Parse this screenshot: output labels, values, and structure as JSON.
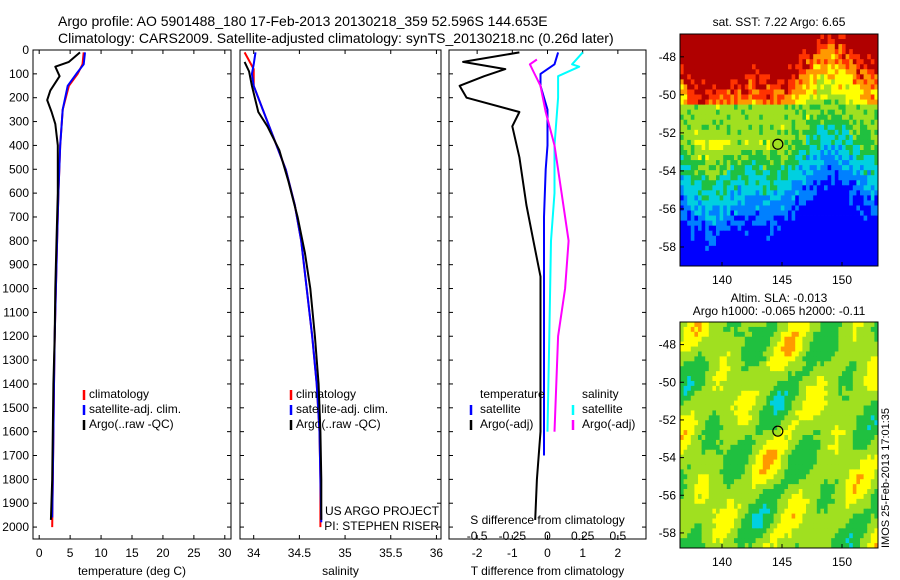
{
  "header": {
    "line1": "Argo profile: AO 5901488_180 17-Feb-2013 20130218_359 52.596S 144.653E",
    "line2": "Climatology: CARS2009. Satellite-adjusted climatology: synTS_20130218.nc (0.26d later)"
  },
  "colors": {
    "climatology": "#ff0000",
    "satellite": "#0000ff",
    "argo": "#000000",
    "sat_salinity": "#00ffff",
    "argo_salinity": "#ff00ff"
  },
  "chart_data": [
    {
      "type": "line",
      "id": "temperature-profile",
      "xlabel": "temperature (deg C)",
      "ylim": [
        2050,
        0
      ],
      "xlim": [
        -1,
        31
      ],
      "xticks": [
        0,
        5,
        10,
        15,
        20,
        25,
        30
      ],
      "yticks": [
        0,
        100,
        200,
        300,
        400,
        500,
        600,
        700,
        800,
        900,
        1000,
        1100,
        1200,
        1300,
        1400,
        1500,
        1600,
        1700,
        1800,
        1900,
        2000
      ],
      "legend": [
        "climatology",
        "satellite-adj. clim.",
        "Argo(..raw -QC)"
      ],
      "series": [
        {
          "name": "climatology",
          "color": "#ff0000",
          "points": [
            [
              7.2,
              10
            ],
            [
              7.0,
              60
            ],
            [
              6.2,
              100
            ],
            [
              4.8,
              150
            ],
            [
              3.8,
              250
            ],
            [
              3.4,
              400
            ],
            [
              3.1,
              600
            ],
            [
              2.9,
              800
            ],
            [
              2.7,
              1000
            ],
            [
              2.5,
              1200
            ],
            [
              2.4,
              1400
            ],
            [
              2.3,
              1600
            ],
            [
              2.2,
              1800
            ],
            [
              2.1,
              2000
            ]
          ]
        },
        {
          "name": "satellite-adj. clim.",
          "color": "#0000ff",
          "points": [
            [
              7.4,
              10
            ],
            [
              7.2,
              60
            ],
            [
              6.0,
              100
            ],
            [
              4.6,
              150
            ],
            [
              3.8,
              250
            ],
            [
              3.4,
              400
            ],
            [
              3.1,
              600
            ],
            [
              2.9,
              800
            ],
            [
              2.7,
              1000
            ],
            [
              2.5,
              1200
            ],
            [
              2.4,
              1400
            ],
            [
              2.3,
              1600
            ],
            [
              2.2,
              1800
            ],
            [
              2.1,
              1960
            ]
          ]
        },
        {
          "name": "Argo(..raw -QC)",
          "color": "#000000",
          "points": [
            [
              6.6,
              10
            ],
            [
              4.8,
              50
            ],
            [
              2.6,
              70
            ],
            [
              3.3,
              110
            ],
            [
              1.8,
              170
            ],
            [
              1.3,
              210
            ],
            [
              2.0,
              260
            ],
            [
              2.6,
              310
            ],
            [
              3.0,
              400
            ],
            [
              3.0,
              600
            ],
            [
              2.8,
              800
            ],
            [
              2.6,
              1000
            ],
            [
              2.5,
              1200
            ],
            [
              2.3,
              1400
            ],
            [
              2.2,
              1600
            ],
            [
              2.1,
              1800
            ],
            [
              1.9,
              1970
            ]
          ]
        }
      ]
    },
    {
      "type": "line",
      "id": "salinity-profile",
      "xlabel": "salinity",
      "ylim": [
        2050,
        0
      ],
      "xlim": [
        33.85,
        36.05
      ],
      "xticks": [
        34,
        34.5,
        35,
        35.5,
        36
      ],
      "xticklabels": [
        "34",
        "34.5",
        "35",
        "35.5",
        "36"
      ],
      "legend": [
        "climatology",
        "satellite-adj. clim.",
        "Argo(..raw -QC)"
      ],
      "series": [
        {
          "name": "climatology",
          "color": "#ff0000",
          "points": [
            [
              33.9,
              10
            ],
            [
              34.0,
              80
            ],
            [
              34.0,
              150
            ],
            [
              34.1,
              250
            ],
            [
              34.2,
              350
            ],
            [
              34.35,
              500
            ],
            [
              34.45,
              650
            ],
            [
              34.52,
              800
            ],
            [
              34.58,
              1000
            ],
            [
              34.64,
              1200
            ],
            [
              34.69,
              1400
            ],
            [
              34.72,
              1600
            ],
            [
              34.73,
              1800
            ],
            [
              34.73,
              2000
            ]
          ]
        },
        {
          "name": "satellite-adj. clim.",
          "color": "#0000ff",
          "points": [
            [
              34.02,
              10
            ],
            [
              34.0,
              60
            ],
            [
              33.98,
              100
            ],
            [
              34.0,
              150
            ],
            [
              34.1,
              250
            ],
            [
              34.2,
              350
            ],
            [
              34.35,
              500
            ],
            [
              34.45,
              650
            ],
            [
              34.52,
              800
            ],
            [
              34.58,
              1000
            ],
            [
              34.64,
              1200
            ],
            [
              34.69,
              1400
            ],
            [
              34.72,
              1600
            ],
            [
              34.73,
              1800
            ],
            [
              34.74,
              1980
            ]
          ]
        },
        {
          "name": "Argo(..raw -QC)",
          "color": "#000000",
          "points": [
            [
              33.9,
              50
            ],
            [
              33.95,
              90
            ],
            [
              33.98,
              150
            ],
            [
              34.05,
              260
            ],
            [
              34.15,
              320
            ],
            [
              34.28,
              420
            ],
            [
              34.38,
              550
            ],
            [
              34.48,
              700
            ],
            [
              34.56,
              850
            ],
            [
              34.62,
              1000
            ],
            [
              34.67,
              1200
            ],
            [
              34.71,
              1400
            ],
            [
              34.73,
              1600
            ],
            [
              34.74,
              1800
            ],
            [
              34.74,
              1970
            ]
          ]
        }
      ],
      "annotations": [
        "US ARGO PROJECT",
        "PI: STEPHEN RISER"
      ]
    },
    {
      "type": "line",
      "id": "difference-profile",
      "xlabel": "T difference from climatology",
      "x2label": "S difference from climatology",
      "ylim": [
        2050,
        0
      ],
      "xlim": [
        -2.8,
        2.8
      ],
      "xticks": [
        -2,
        -1,
        0,
        1,
        2
      ],
      "x2lim": [
        -0.7,
        0.7
      ],
      "x2ticks": [
        -0.5,
        -0.25,
        0,
        0.25,
        0.5
      ],
      "legend_left": [
        "temperature",
        "satellite",
        "Argo(-adj)"
      ],
      "legend_right": [
        "salinity",
        "satellite",
        "Argo(-adj)"
      ],
      "series": [
        {
          "name": "temperature satellite",
          "color": "#0000ff",
          "points": [
            [
              0.3,
              10
            ],
            [
              0.2,
              60
            ],
            [
              -0.2,
              100
            ],
            [
              -0.2,
              150
            ],
            [
              0,
              250
            ],
            [
              0,
              400
            ],
            [
              -0.05,
              500
            ],
            [
              -0.1,
              700
            ],
            [
              -0.1,
              1000
            ],
            [
              -0.1,
              1500
            ],
            [
              -0.1,
              1700
            ]
          ]
        },
        {
          "name": "temperature Argo(-adj)",
          "color": "#000000",
          "points": [
            [
              -0.8,
              10
            ],
            [
              -2.4,
              50
            ],
            [
              -1.2,
              80
            ],
            [
              -1.8,
              110
            ],
            [
              -2.5,
              150
            ],
            [
              -2.3,
              200
            ],
            [
              -0.8,
              260
            ],
            [
              -1.0,
              320
            ],
            [
              -0.8,
              450
            ],
            [
              -0.6,
              650
            ],
            [
              -0.4,
              800
            ],
            [
              -0.2,
              950
            ],
            [
              -0.2,
              1200
            ],
            [
              -0.2,
              1600
            ],
            [
              -0.3,
              1800
            ],
            [
              -0.35,
              1970
            ]
          ]
        },
        {
          "name": "salinity satellite",
          "color": "#00ffff",
          "points": [
            [
              1.0,
              10
            ],
            [
              0.7,
              60
            ],
            [
              0.9,
              70
            ],
            [
              0.3,
              110
            ],
            [
              0.3,
              200
            ],
            [
              0.2,
              400
            ],
            [
              0.2,
              600
            ],
            [
              0.1,
              800
            ],
            [
              0.05,
              1200
            ],
            [
              0.0,
              1600
            ]
          ]
        },
        {
          "name": "salinity Argo(-adj)",
          "color": "#ff00ff",
          "points": [
            [
              -0.3,
              40
            ],
            [
              -0.5,
              60
            ],
            [
              -0.4,
              90
            ],
            [
              -0.2,
              150
            ],
            [
              -0.05,
              260
            ],
            [
              0.2,
              400
            ],
            [
              0.4,
              600
            ],
            [
              0.6,
              800
            ],
            [
              0.5,
              1000
            ],
            [
              0.3,
              1200
            ],
            [
              0.2,
              1600
            ]
          ]
        }
      ]
    },
    {
      "type": "heatmap",
      "id": "sst-map",
      "title": "sat. SST: 7.22 Argo: 6.65",
      "xlim": [
        136.5,
        153
      ],
      "ylim": [
        -59,
        -46.8
      ],
      "xticks": [
        140,
        145,
        150
      ],
      "yticks": [
        -48,
        -50,
        -52,
        -54,
        -56,
        -58
      ],
      "marker": {
        "lon": 144.653,
        "lat": -52.596
      }
    },
    {
      "type": "heatmap",
      "id": "sla-map",
      "title_line1": "Altim. SLA: -0.013",
      "title_line2": "Argo h1000: -0.065 h2000: -0.11",
      "xlim": [
        136.5,
        153
      ],
      "ylim": [
        -58.8,
        -46.8
      ],
      "xticks": [
        140,
        145,
        150
      ],
      "yticks": [
        -48,
        -50,
        -52,
        -54,
        -56,
        -58
      ],
      "marker": {
        "lon": 144.653,
        "lat": -52.596
      }
    }
  ],
  "footer": {
    "stamp": "IMOS 25-Feb-2013 17:01:35"
  }
}
